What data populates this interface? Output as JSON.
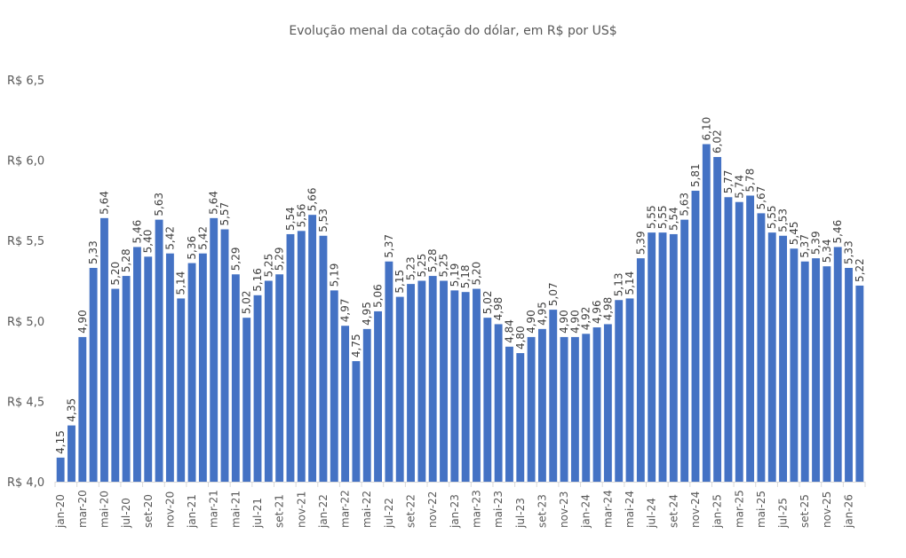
{
  "chart_data": {
    "type": "bar",
    "title": "Evolução menal da cotação do dólar, em R$ por US$",
    "xlabel": "",
    "ylabel": "",
    "ylim": [
      4.0,
      6.5
    ],
    "y_ticks": [
      4.0,
      4.5,
      5.0,
      5.5,
      6.0,
      6.5
    ],
    "y_tick_labels": [
      "R$ 4,0",
      "R$ 4,5",
      "R$ 5,0",
      "R$ 5,5",
      "R$ 6,0",
      "R$ 6,5"
    ],
    "grid": false,
    "bar_color": "#4472C4",
    "categories": [
      "jan-20",
      "fev-20",
      "mar-20",
      "abr-20",
      "mai-20",
      "jun-20",
      "jul-20",
      "ago-20",
      "set-20",
      "out-20",
      "nov-20",
      "dez-20",
      "jan-21",
      "fev-21",
      "mar-21",
      "abr-21",
      "mai-21",
      "jun-21",
      "jul-21",
      "ago-21",
      "set-21",
      "out-21",
      "nov-21",
      "dez-21",
      "jan-22",
      "fev-22",
      "mar-22",
      "abr-22",
      "mai-22",
      "jun-22",
      "jul-22",
      "ago-22",
      "set-22",
      "out-22",
      "nov-22",
      "dez-22",
      "jan-23",
      "fev-23",
      "mar-23",
      "abr-23",
      "mai-23",
      "jun-23",
      "jul-23",
      "ago-23",
      "set-23",
      "out-23",
      "nov-23",
      "dez-23",
      "jan-24",
      "fev-24",
      "mar-24",
      "abr-24",
      "mai-24",
      "jun-24",
      "jul-24",
      "ago-24",
      "set-24",
      "out-24",
      "nov-24",
      "dez-24",
      "jan-25",
      "fev-25",
      "mar-25",
      "abr-25",
      "mai-25",
      "jun-25",
      "jul-25",
      "ago-25",
      "set-25",
      "out-25",
      "nov-25",
      "dez-25",
      "jan-26",
      "fev-26"
    ],
    "x_tick_labels_shown": [
      "jan-20",
      "mar-20",
      "mai-20",
      "jul-20",
      "set-20",
      "nov-20",
      "jan-21",
      "mar-21",
      "mai-21",
      "jul-21",
      "set-21",
      "nov-21",
      "jan-22",
      "mar-22",
      "mai-22",
      "jul-22",
      "set-22",
      "nov-22",
      "jan-23",
      "mar-23",
      "mai-23",
      "jul-23",
      "set-23",
      "nov-23",
      "jan-24",
      "mar-24",
      "mai-24",
      "jul-24",
      "set-24",
      "nov-24",
      "jan-25",
      "mar-25",
      "mai-25",
      "jul-25",
      "set-25",
      "nov-25",
      "jan-26"
    ],
    "values": [
      4.15,
      4.35,
      4.9,
      5.33,
      5.64,
      5.2,
      5.28,
      5.46,
      5.4,
      5.63,
      5.42,
      5.14,
      5.36,
      5.42,
      5.64,
      5.57,
      5.29,
      5.02,
      5.16,
      5.25,
      5.29,
      5.54,
      5.56,
      5.66,
      5.53,
      5.19,
      4.97,
      4.75,
      4.95,
      5.06,
      5.37,
      5.15,
      5.23,
      5.25,
      5.28,
      5.25,
      5.19,
      5.18,
      5.2,
      5.02,
      4.98,
      4.84,
      4.8,
      4.9,
      4.95,
      5.07,
      4.9,
      4.9,
      4.92,
      4.96,
      4.98,
      5.13,
      5.14,
      5.39,
      5.55,
      5.55,
      5.54,
      5.63,
      5.81,
      6.1,
      6.02,
      5.77,
      5.74,
      5.78,
      5.67,
      5.55,
      5.53,
      5.45,
      5.37,
      5.39,
      5.34,
      5.46,
      5.33,
      5.22
    ],
    "data_labels": [
      "4,15",
      "4,35",
      "4,90",
      "5,33",
      "5,64",
      "5,20",
      "5,28",
      "5,46",
      "5,40",
      "5,63",
      "5,42",
      "5,14",
      "5,36",
      "5,42",
      "5,64",
      "5,57",
      "5,29",
      "5,02",
      "5,16",
      "5,25",
      "5,29",
      "5,54",
      "5,56",
      "5,66",
      "5,53",
      "5,19",
      "4,97",
      "4,75",
      "4,95",
      "5,06",
      "5,37",
      "5,15",
      "5,23",
      "5,25",
      "5,28",
      "5,25",
      "5,19",
      "5,18",
      "5,20",
      "5,02",
      "4,98",
      "4,84",
      "4,80",
      "4,90",
      "4,95",
      "5,07",
      "4,90",
      "4,90",
      "4,92",
      "4,96",
      "4,98",
      "5,13",
      "5,14",
      "5,39",
      "5,55",
      "5,55",
      "5,54",
      "5,63",
      "5,81",
      "6,10",
      "6,02",
      "5,77",
      "5,74",
      "5,78",
      "5,67",
      "5,55",
      "5,53",
      "5,45",
      "5,37",
      "5,39",
      "5,34",
      "5,46",
      "5,33",
      "5,22"
    ]
  }
}
